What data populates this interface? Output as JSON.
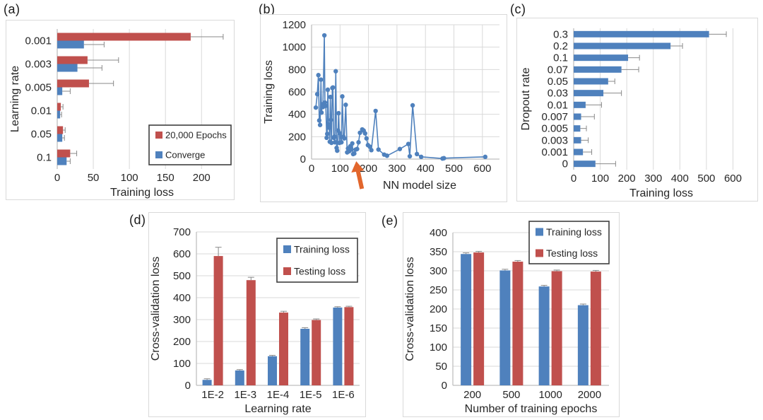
{
  "colors": {
    "blue": "#4f81bd",
    "red": "#c0504d",
    "orange": "#e2662c",
    "grid": "#d9d9d9",
    "axis": "#bfbfbf",
    "error_bar": "#898989",
    "text": "#262626",
    "legend_border": "#3f3f3f",
    "panel_border": "#d9d9d9",
    "background": "#ffffff"
  },
  "chart_data": [
    {
      "id": "a",
      "panel": "(a)",
      "type": "bar",
      "orientation": "horizontal",
      "categories": [
        "0.001",
        "0.003",
        "0.005",
        "0.01",
        "0.05",
        "0.1"
      ],
      "series": [
        {
          "name": "20,000 Epochs",
          "color": "red",
          "values": [
            185,
            42,
            44,
            5,
            8,
            18
          ],
          "errors_plus": [
            45,
            43,
            34,
            3,
            3,
            9
          ]
        },
        {
          "name": "Converge",
          "color": "blue",
          "values": [
            37,
            28,
            7,
            4,
            7,
            13
          ],
          "errors_plus": [
            28,
            34,
            11,
            2,
            3,
            5
          ]
        }
      ],
      "xlabel": "Training loss",
      "ylabel": "Learning rate",
      "xticks": [
        0,
        50,
        100,
        150,
        200
      ],
      "xlim": [
        0,
        235
      ],
      "grid": "vertical",
      "legend": {
        "position": "bottom-right"
      }
    },
    {
      "id": "b",
      "panel": "(b)",
      "type": "line",
      "x": [
        15,
        20,
        24,
        27,
        30,
        33,
        35,
        38,
        40,
        45,
        47,
        50,
        53,
        55,
        57,
        60,
        62,
        64,
        66,
        68,
        70,
        73,
        75,
        78,
        80,
        82,
        85,
        88,
        90,
        93,
        95,
        98,
        100,
        105,
        108,
        112,
        115,
        120,
        125,
        128,
        132,
        136,
        140,
        143,
        146,
        150,
        155,
        160,
        165,
        170,
        178,
        183,
        188,
        193,
        198,
        205,
        210,
        225,
        235,
        255,
        265,
        310,
        340,
        345,
        355,
        370,
        385,
        460,
        465,
        610
      ],
      "y": [
        460,
        580,
        750,
        345,
        305,
        710,
        415,
        490,
        465,
        1105,
        505,
        475,
        190,
        225,
        620,
        310,
        280,
        155,
        555,
        350,
        145,
        635,
        640,
        190,
        200,
        150,
        785,
        100,
        75,
        255,
        410,
        145,
        230,
        150,
        560,
        200,
        185,
        485,
        60,
        95,
        70,
        115,
        85,
        140,
        45,
        50,
        85,
        90,
        150,
        235,
        265,
        255,
        230,
        185,
        125,
        110,
        80,
        430,
        85,
        40,
        30,
        90,
        135,
        25,
        480,
        45,
        20,
        5,
        8,
        20
      ],
      "xlabel": "NN model size",
      "ylabel": "Training loss",
      "xticks": [
        0,
        100,
        200,
        300,
        400,
        500,
        600
      ],
      "yticks": [
        0,
        200,
        400,
        600,
        800,
        1000,
        1200
      ],
      "xlim": [
        0,
        660
      ],
      "ylim": [
        0,
        1200
      ],
      "grid": "both",
      "annotation": {
        "shape": "up-arrow",
        "color": "orange",
        "x": 157
      }
    },
    {
      "id": "c",
      "panel": "(c)",
      "type": "bar",
      "orientation": "horizontal",
      "categories": [
        "0.3",
        "0.2",
        "0.1",
        "0.07",
        "0.05",
        "0.03",
        "0.01",
        "0.007",
        "0.005",
        "0.003",
        "0.001",
        "0"
      ],
      "series": [
        {
          "name": "Training loss",
          "color": "blue",
          "values": [
            510,
            365,
            205,
            180,
            130,
            112,
            45,
            28,
            25,
            28,
            35,
            82
          ],
          "errors_plus": [
            65,
            45,
            43,
            65,
            25,
            68,
            60,
            50,
            23,
            27,
            33,
            76
          ]
        }
      ],
      "xlabel": "Training loss",
      "ylabel": "Dropout rate",
      "xticks": [
        0,
        100,
        200,
        300,
        400,
        500,
        600
      ],
      "xlim": [
        0,
        660
      ],
      "grid": "vertical"
    },
    {
      "id": "d",
      "panel": "(d)",
      "type": "bar",
      "orientation": "vertical",
      "categories": [
        "1E-2",
        "1E-3",
        "1E-4",
        "1E-5",
        "1E-6"
      ],
      "series": [
        {
          "name": "Training loss",
          "color": "blue",
          "values": [
            25,
            68,
            133,
            258,
            355
          ],
          "errors_plus": [
            5,
            4,
            4,
            5,
            4
          ]
        },
        {
          "name": "Testing loss",
          "color": "red",
          "values": [
            590,
            480,
            332,
            298,
            357
          ],
          "errors_plus": [
            40,
            13,
            6,
            5,
            4
          ]
        }
      ],
      "xlabel": "Learning rate",
      "ylabel": "Cross-validation loss",
      "yticks": [
        0,
        100,
        200,
        300,
        400,
        500,
        600,
        700
      ],
      "ylim": [
        0,
        700
      ],
      "grid": "horizontal",
      "legend": {
        "position": "top-right"
      }
    },
    {
      "id": "e",
      "panel": "(e)",
      "type": "bar",
      "orientation": "vertical",
      "categories": [
        "200",
        "500",
        "1000",
        "2000"
      ],
      "series": [
        {
          "name": "Training loss",
          "color": "blue",
          "values": [
            344,
            301,
            259,
            210
          ],
          "errors_plus": [
            3,
            3,
            3,
            3
          ]
        },
        {
          "name": "Testing loss",
          "color": "red",
          "values": [
            348,
            324,
            299,
            298
          ],
          "errors_plus": [
            3,
            3,
            3,
            3
          ]
        }
      ],
      "xlabel": "Number of training epochs",
      "ylabel": "Cross-validation loss",
      "yticks": [
        0,
        50,
        100,
        150,
        200,
        250,
        300,
        350,
        400
      ],
      "ylim": [
        0,
        400
      ],
      "grid": "horizontal",
      "legend": {
        "position": "top-right"
      }
    }
  ]
}
